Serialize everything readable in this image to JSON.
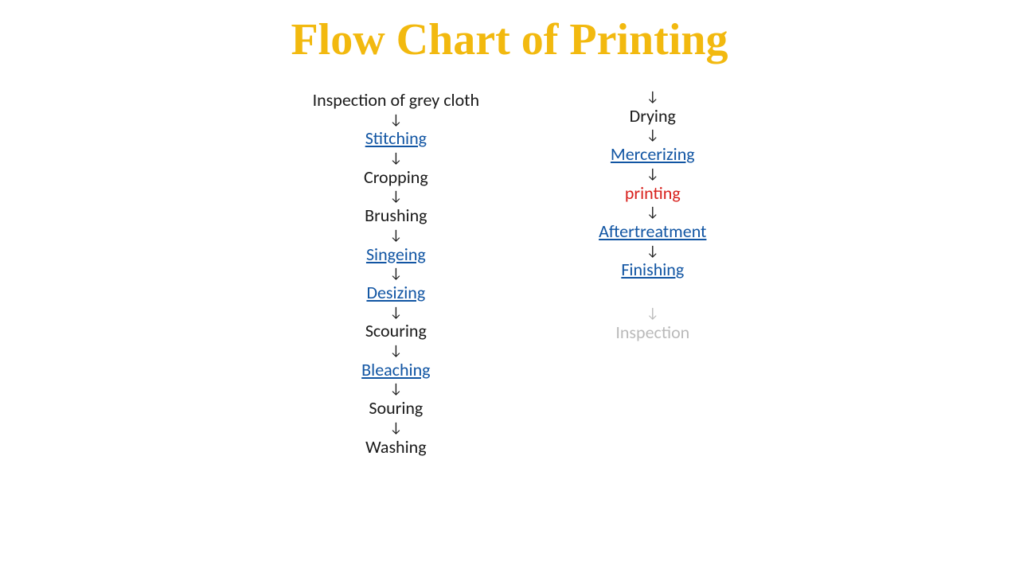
{
  "title": {
    "text": "Flow Chart of Printing",
    "color": "#f2b90f",
    "fontsize": 56
  },
  "arrow_glyph": "↓",
  "colors": {
    "plain": "#1a1a1a",
    "link": "#1155a3",
    "highlight": "#d8211d",
    "faded": "#1a1a1a",
    "arrow": "#1a1a1a"
  },
  "fontsize": {
    "step": 22,
    "arrow": 18
  },
  "column1": [
    {
      "label": "Inspection of grey cloth",
      "style": "plain"
    },
    {
      "label": "Stitching",
      "style": "link"
    },
    {
      "label": "Cropping",
      "style": "plain"
    },
    {
      "label": "Brushing",
      "style": "plain"
    },
    {
      "label": "Singeing",
      "style": "link"
    },
    {
      "label": "Desizing",
      "style": "link"
    },
    {
      "label": "Scouring",
      "style": "plain"
    },
    {
      "label": "Bleaching",
      "style": "link"
    },
    {
      "label": "Souring",
      "style": "plain"
    },
    {
      "label": "Washing",
      "style": "plain"
    }
  ],
  "column2": [
    {
      "label": "Drying",
      "style": "plain"
    },
    {
      "label": "Mercerizing",
      "style": "link"
    },
    {
      "label": "printing",
      "style": "highlight"
    },
    {
      "label": "Aftertreatment",
      "style": "link"
    },
    {
      "label": "Finishing",
      "style": "link"
    },
    {
      "label": "Inspection",
      "style": "faded",
      "gap_before": true
    }
  ]
}
